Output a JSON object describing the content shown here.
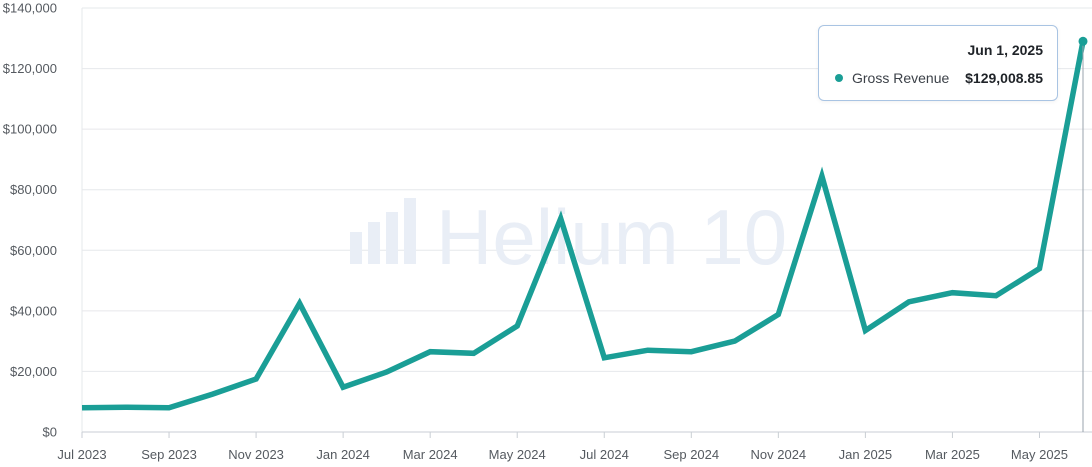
{
  "chart_data": {
    "type": "line",
    "x": [
      "2023-07-01",
      "2023-08-01",
      "2023-09-01",
      "2023-10-01",
      "2023-11-01",
      "2023-12-01",
      "2024-01-01",
      "2024-02-01",
      "2024-03-01",
      "2024-04-01",
      "2024-05-01",
      "2024-06-01",
      "2024-07-01",
      "2024-08-01",
      "2024-09-01",
      "2024-10-01",
      "2024-11-01",
      "2024-12-01",
      "2025-01-01",
      "2025-02-01",
      "2025-03-01",
      "2025-04-01",
      "2025-05-01",
      "2025-06-01"
    ],
    "series": [
      {
        "name": "Gross Revenue",
        "color": "#1a9e96",
        "values": [
          8000,
          8200,
          8000,
          12500,
          17500,
          42500,
          14800,
          19800,
          26500,
          26000,
          35000,
          70500,
          24500,
          27000,
          26500,
          30000,
          38800,
          84500,
          33500,
          43000,
          46000,
          45000,
          54000,
          129008.85
        ]
      }
    ],
    "x_tick_labels": [
      "Jul 2023",
      "Sep 2023",
      "Nov 2023",
      "Jan 2024",
      "Mar 2024",
      "May 2024",
      "Jul 2024",
      "Sep 2024",
      "Nov 2024",
      "Jan 2025",
      "Mar 2025",
      "May 2025"
    ],
    "y_tick_labels": [
      "$0",
      "$20,000",
      "$40,000",
      "$60,000",
      "$80,000",
      "$100,000",
      "$120,000",
      "$140,000"
    ],
    "ylim": [
      0,
      140000
    ],
    "grid": true,
    "title": "",
    "xlabel": "",
    "ylabel": "",
    "watermark": "Helium 10",
    "tooltip": {
      "date": "Jun 1, 2025",
      "series_name": "Gross Revenue",
      "value": "$129,008.85"
    }
  }
}
